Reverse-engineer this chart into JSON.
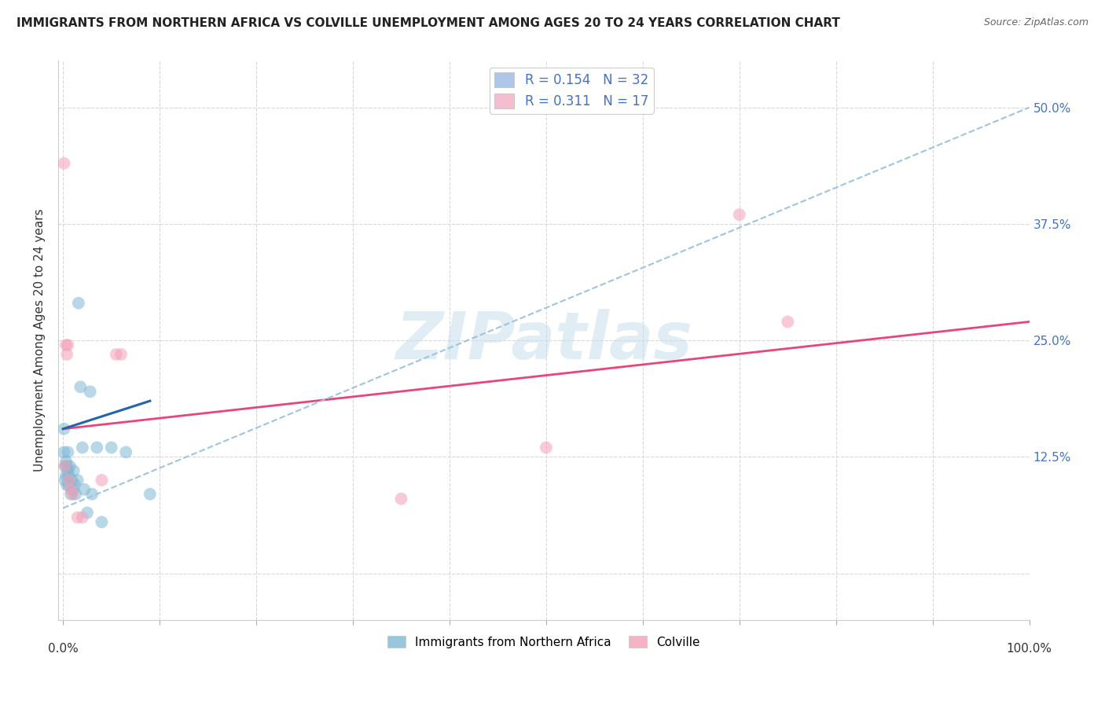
{
  "title": "IMMIGRANTS FROM NORTHERN AFRICA VS COLVILLE UNEMPLOYMENT AMONG AGES 20 TO 24 YEARS CORRELATION CHART",
  "source": "Source: ZipAtlas.com",
  "ylabel": "Unemployment Among Ages 20 to 24 years",
  "ytick_labels": [
    "",
    "12.5%",
    "25.0%",
    "37.5%",
    "50.0%"
  ],
  "ytick_values": [
    0,
    0.125,
    0.25,
    0.375,
    0.5
  ],
  "xlim": [
    -0.005,
    1.0
  ],
  "ylim": [
    -0.05,
    0.55
  ],
  "legend_entries": [
    {
      "label": "R = 0.154   N = 32",
      "color": "#aec6e8"
    },
    {
      "label": "R = 0.311   N = 17",
      "color": "#f5bece"
    }
  ],
  "watermark": "ZIPatlas",
  "blue_scatter_x": [
    0.001,
    0.001,
    0.002,
    0.002,
    0.003,
    0.003,
    0.004,
    0.004,
    0.005,
    0.005,
    0.006,
    0.006,
    0.007,
    0.008,
    0.009,
    0.01,
    0.011,
    0.012,
    0.013,
    0.015,
    0.016,
    0.018,
    0.02,
    0.022,
    0.025,
    0.028,
    0.03,
    0.035,
    0.04,
    0.05,
    0.065,
    0.09
  ],
  "blue_scatter_y": [
    0.155,
    0.13,
    0.115,
    0.1,
    0.12,
    0.105,
    0.095,
    0.115,
    0.11,
    0.13,
    0.095,
    0.105,
    0.115,
    0.085,
    0.1,
    0.09,
    0.11,
    0.095,
    0.085,
    0.1,
    0.29,
    0.2,
    0.135,
    0.09,
    0.065,
    0.195,
    0.085,
    0.135,
    0.055,
    0.135,
    0.13,
    0.085
  ],
  "pink_scatter_x": [
    0.001,
    0.002,
    0.003,
    0.004,
    0.005,
    0.006,
    0.008,
    0.01,
    0.015,
    0.02,
    0.04,
    0.055,
    0.06,
    0.35,
    0.5,
    0.7,
    0.75
  ],
  "pink_scatter_y": [
    0.44,
    0.115,
    0.245,
    0.235,
    0.245,
    0.1,
    0.09,
    0.085,
    0.06,
    0.06,
    0.1,
    0.235,
    0.235,
    0.08,
    0.135,
    0.385,
    0.27
  ],
  "blue_line_x0": 0.0,
  "blue_line_x1": 0.09,
  "blue_line_y0": 0.155,
  "blue_line_y1": 0.185,
  "pink_line_x0": 0.0,
  "pink_line_x1": 1.0,
  "pink_line_y0": 0.155,
  "pink_line_y1": 0.27,
  "dash_line_x0": 0.0,
  "dash_line_x1": 1.0,
  "dash_line_y0": 0.07,
  "dash_line_y1": 0.5,
  "blue_color": "#7eb8d4",
  "pink_color": "#f4a0b8",
  "blue_line_color": "#2166ac",
  "pink_line_color": "#e8457a",
  "dash_line_color": "#9ec4de",
  "scatter_size": 130,
  "background_color": "#ffffff",
  "grid_color": "#d8d8d8",
  "grid_linestyle": "--"
}
